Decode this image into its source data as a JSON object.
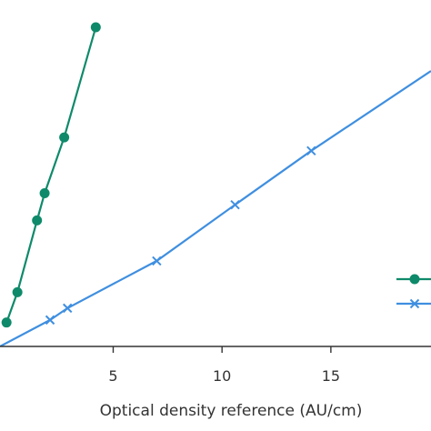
{
  "chart_data": {
    "type": "line",
    "xlabel": "Optical density reference (AU/cm)",
    "xlim": [
      -0.2,
      19.6
    ],
    "ylim": [
      0,
      1
    ],
    "x_ticks": [
      5,
      10,
      15
    ],
    "x_tick_labels": [
      "5",
      "10",
      "15"
    ],
    "grid": false,
    "legend": "right",
    "series": [
      {
        "marker": "circle",
        "color": "#0e8a6a",
        "points": [
          {
            "x": 0.1,
            "y": 0.075
          },
          {
            "x": 0.6,
            "y": 0.17
          },
          {
            "x": 1.5,
            "y": 0.395
          },
          {
            "x": 1.85,
            "y": 0.48
          },
          {
            "x": 2.75,
            "y": 0.655
          },
          {
            "x": 4.2,
            "y": 1.0
          }
        ]
      },
      {
        "marker": "x",
        "color": "#3f8fe0",
        "points": [
          {
            "x": -0.2,
            "y": 0.0
          },
          {
            "x": 2.1,
            "y": 0.083
          },
          {
            "x": 2.9,
            "y": 0.12
          },
          {
            "x": 7.0,
            "y": 0.268
          },
          {
            "x": 10.6,
            "y": 0.444
          },
          {
            "x": 14.1,
            "y": 0.613
          },
          {
            "x": 19.6,
            "y": 0.863
          }
        ]
      }
    ]
  }
}
